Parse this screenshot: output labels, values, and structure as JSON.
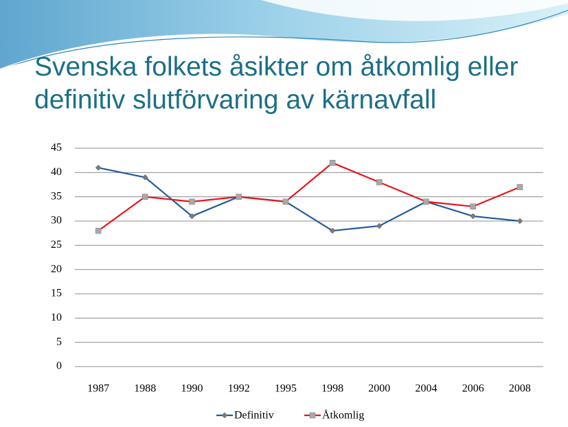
{
  "chart_data": {
    "type": "line",
    "title": "Svenska folkets åsikter om åtkomlig eller definitiv slutförvaring av kärnavfall",
    "categories": [
      "1987",
      "1988",
      "1990",
      "1992",
      "1995",
      "1998",
      "2000",
      "2004",
      "2006",
      "2008"
    ],
    "series": [
      {
        "name": "Definitiv",
        "color": "#1f5b99",
        "marker": "diamond",
        "marker_color": "#7a7a7a",
        "values": [
          41,
          39,
          31,
          35,
          34,
          28,
          29,
          34,
          31,
          30
        ]
      },
      {
        "name": "Åtkomlig",
        "color": "#e8141b",
        "marker": "square",
        "marker_color": "#a9a9a9",
        "values": [
          28,
          35,
          34,
          35,
          34,
          42,
          38,
          34,
          33,
          37
        ]
      }
    ],
    "ylim": [
      0,
      45
    ],
    "yticks": [
      0,
      5,
      10,
      15,
      20,
      25,
      30,
      35,
      40,
      45
    ],
    "grid": true,
    "legend": "bottom"
  }
}
